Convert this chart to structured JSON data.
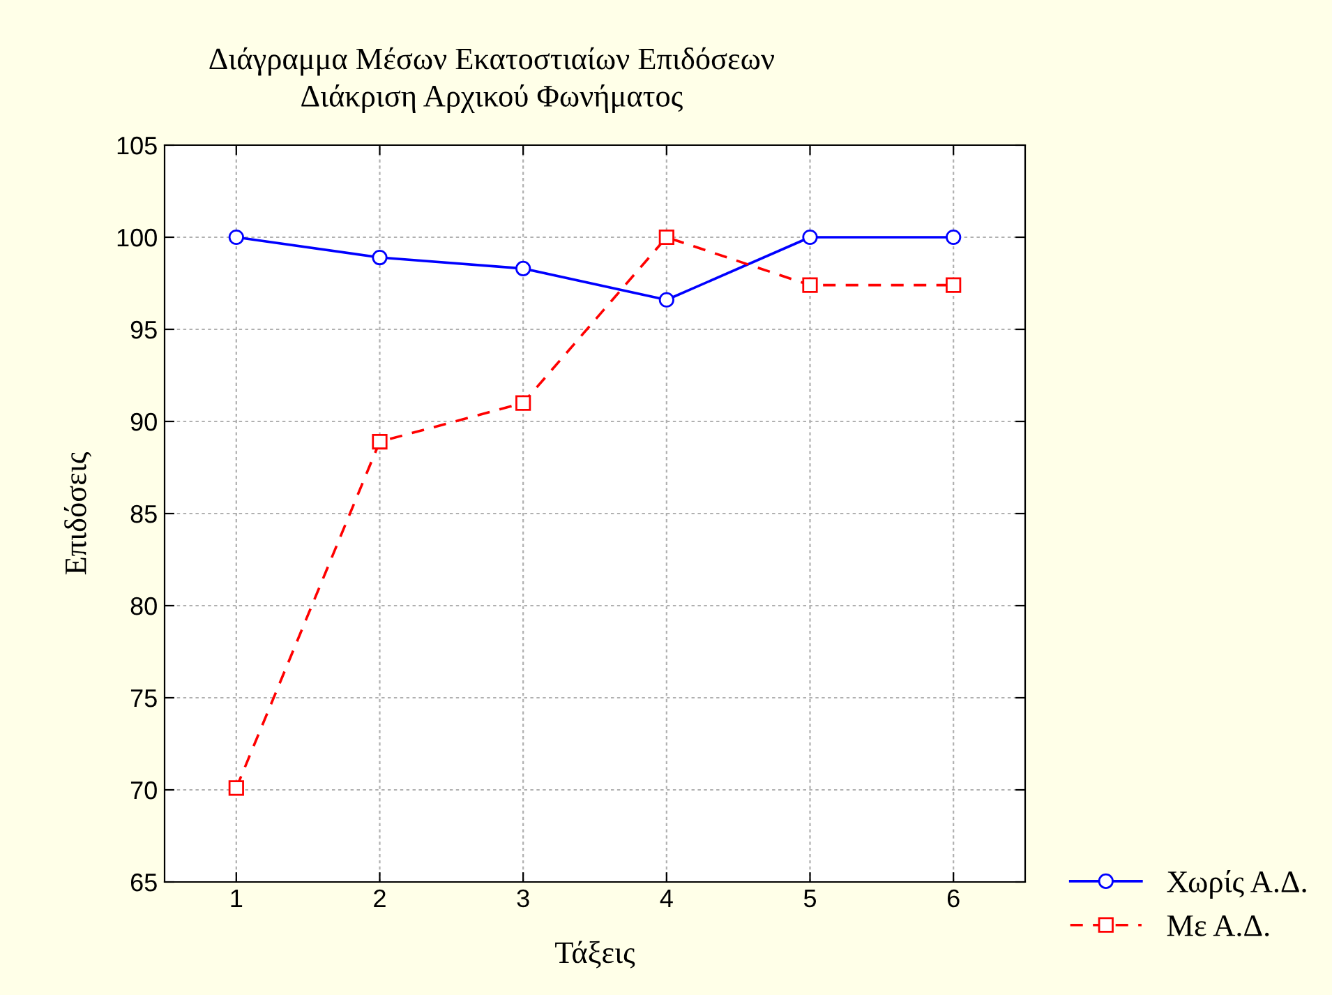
{
  "chart_data": {
    "type": "line",
    "title": "Διάγραμμα Μέσων Εκατοστιαίων Επιδόσεων\nΔιάκριση Αρχικού Φωνήματος",
    "xlabel": "Τάξεις",
    "ylabel": "Επιδόσεις",
    "x": [
      1,
      2,
      3,
      4,
      5,
      6
    ],
    "series": [
      {
        "name": "Χωρίς Α.Δ.",
        "color": "#0000ff",
        "marker": "circle",
        "line_style": "solid",
        "values": [
          100,
          98.9,
          98.3,
          96.6,
          100,
          100
        ]
      },
      {
        "name": "Με Α.Δ.",
        "color": "#ff0000",
        "marker": "square",
        "line_style": "dashed",
        "values": [
          70.1,
          88.9,
          91,
          100,
          97.4,
          97.4
        ]
      }
    ],
    "xlim": [
      0.5,
      6.5
    ],
    "xticks": [
      1,
      2,
      3,
      4,
      5,
      6
    ],
    "ylim": [
      65,
      105
    ],
    "yticks": [
      65,
      70,
      75,
      80,
      85,
      90,
      95,
      100,
      105
    ],
    "grid": true,
    "legend": "bottom right"
  }
}
